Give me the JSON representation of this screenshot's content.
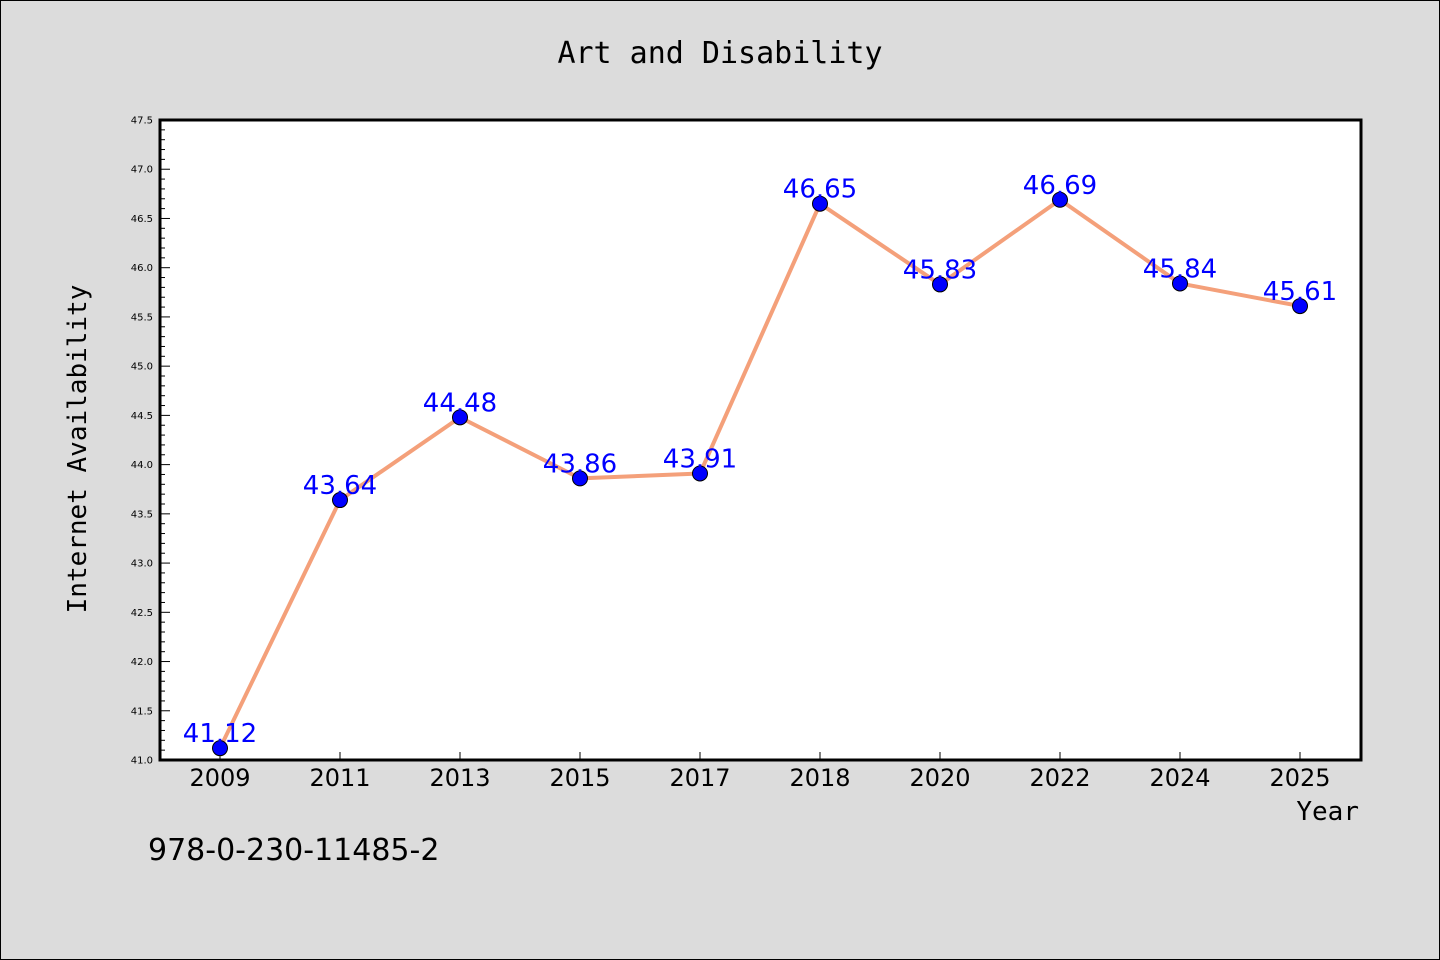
{
  "chart_data": {
    "type": "line",
    "title": "Art and Disability",
    "xlabel": "Year",
    "ylabel": "Internet Availability",
    "categories": [
      "2009",
      "2011",
      "2013",
      "2015",
      "2017",
      "2018",
      "2020",
      "2022",
      "2024",
      "2025"
    ],
    "series": [
      {
        "values": [
          41.12,
          43.64,
          44.48,
          43.86,
          43.91,
          46.65,
          45.83,
          46.69,
          45.84,
          45.61
        ],
        "data_labels": [
          "41.12",
          "43.64",
          "44.48",
          "43.86",
          "43.91",
          "46.65",
          "45.83",
          "46.69",
          "45.84",
          "45.61"
        ],
        "line_color": "#f4a07a",
        "marker_color": "#0000ff"
      }
    ],
    "ylim": [
      41.0,
      47.5
    ],
    "yticks": [
      "41.0",
      "41.5",
      "42.0",
      "42.5",
      "43.0",
      "43.5",
      "44.0",
      "44.5",
      "45.0",
      "45.5",
      "46.0",
      "46.5",
      "47.0",
      "47.5"
    ],
    "grid": false,
    "label_color": "#0000ff"
  },
  "footer": {
    "isbn": "978-0-230-11485-2"
  }
}
